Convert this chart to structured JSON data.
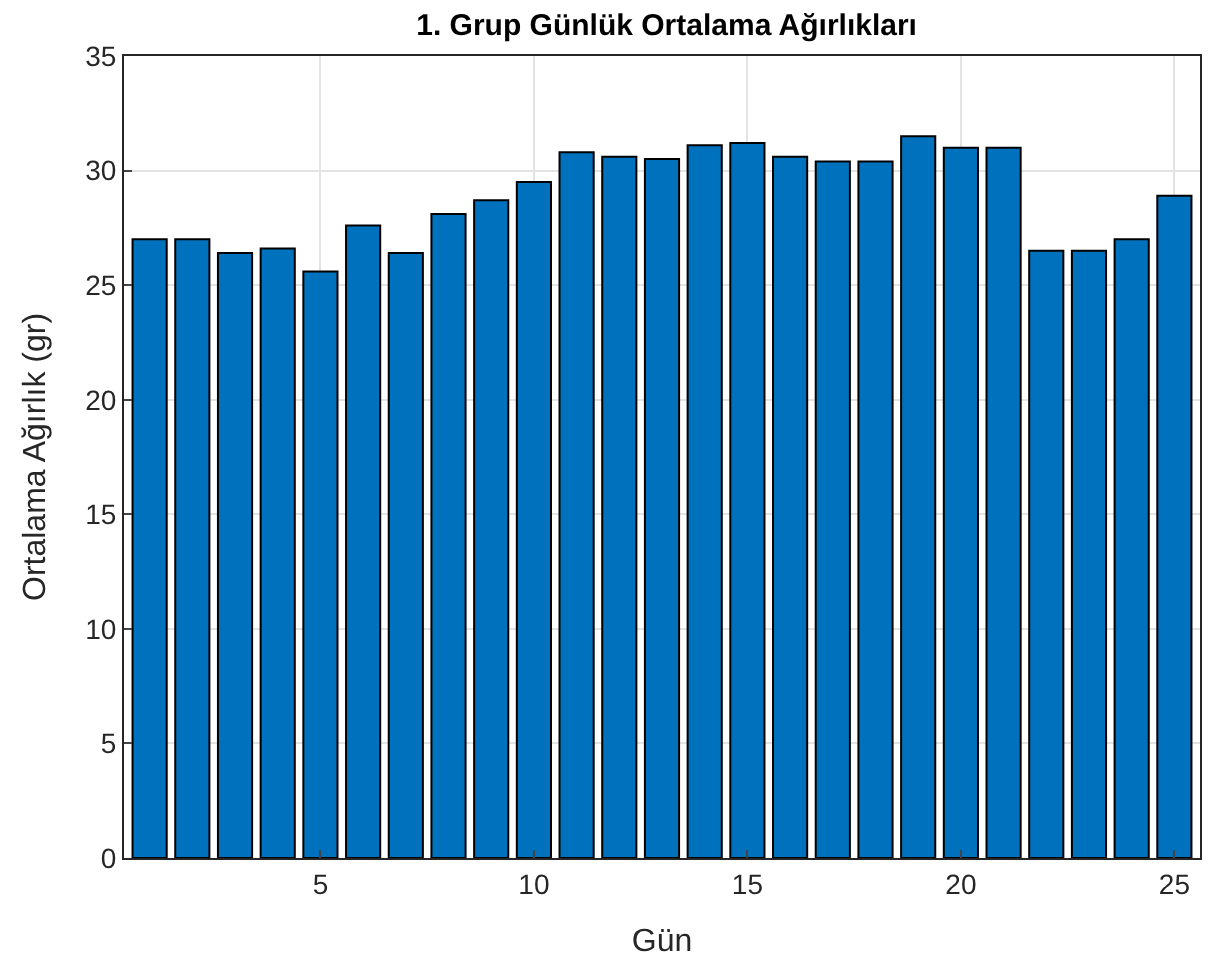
{
  "chart_data": {
    "type": "bar",
    "title": "1. Grup Günlük Ortalama Ağırlıkları",
    "xlabel": "Gün",
    "ylabel": "Ortalama Ağırlık (gr)",
    "x": [
      1,
      2,
      3,
      4,
      5,
      6,
      7,
      8,
      9,
      10,
      11,
      12,
      13,
      14,
      15,
      16,
      17,
      18,
      19,
      20,
      21,
      22,
      23,
      24,
      25
    ],
    "values": [
      27.0,
      27.0,
      26.4,
      26.6,
      25.6,
      27.6,
      26.4,
      28.1,
      28.7,
      29.5,
      30.8,
      30.6,
      30.5,
      31.1,
      31.2,
      30.6,
      30.4,
      30.4,
      31.5,
      31.0,
      31.0,
      26.5,
      26.5,
      27.0,
      28.9
    ],
    "color": "#0072bd",
    "xlim": [
      0.4,
      25.6
    ],
    "xticks": [
      5,
      10,
      15,
      20,
      25
    ],
    "ylim": [
      0,
      35
    ],
    "yticks": [
      0,
      5,
      10,
      15,
      20,
      25,
      30,
      35
    ],
    "grid": true,
    "legend": false
  }
}
